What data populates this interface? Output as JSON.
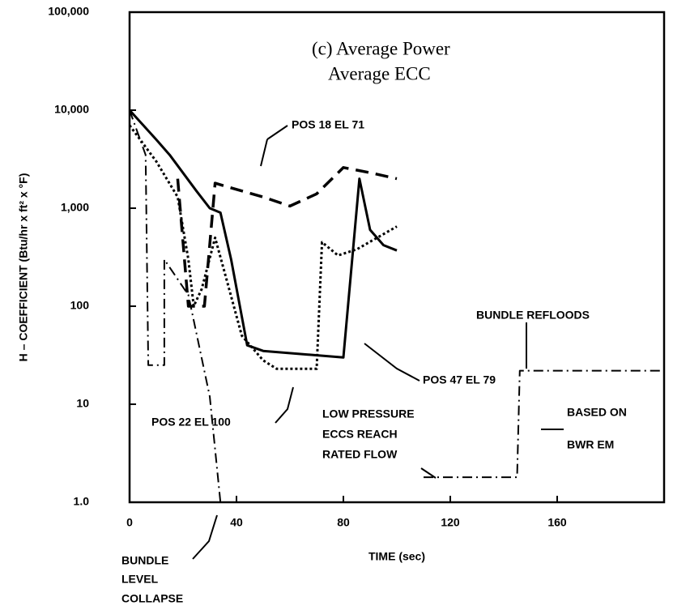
{
  "chart_data": {
    "type": "line",
    "title": "(c) Average Power",
    "subtitle": "Average ECC",
    "xlabel": "TIME (sec)",
    "ylabel": "H – COEFFICIENT (Btu/hr x ft² x °F)",
    "xlim": [
      0,
      200
    ],
    "ylim": [
      1,
      100000
    ],
    "log_y": true,
    "xticks": [
      0,
      40,
      80,
      120,
      160
    ],
    "yticks": [
      {
        "value": 1,
        "label": "1.0"
      },
      10,
      100,
      {
        "value": 1000,
        "label": "1,000"
      },
      {
        "value": 10000,
        "label": "10,000"
      },
      {
        "value": 100000,
        "label": "100,000"
      }
    ],
    "series": [
      {
        "name": "POS 47 EL 79",
        "color": "#000000",
        "style": "solid",
        "x": [
          0,
          10,
          15,
          25,
          30,
          34,
          38,
          44,
          50,
          80,
          86,
          90,
          95,
          100
        ],
        "values": [
          10000,
          5000,
          3500,
          1500,
          1000,
          900,
          300,
          40,
          35,
          30,
          2000,
          600,
          420,
          370
        ]
      },
      {
        "name": "POS 18 EL 71",
        "color": "#000000",
        "style": "dashed",
        "x": [
          18,
          22,
          28,
          32,
          35,
          50,
          60,
          70,
          80,
          90,
          100
        ],
        "values": [
          2000,
          100,
          100,
          1800,
          1700,
          1300,
          1050,
          1400,
          2600,
          2300,
          2000
        ]
      },
      {
        "name": "POS 22 EL 100",
        "color": "#000000",
        "style": "dotted",
        "x": [
          0,
          10,
          18,
          22,
          24,
          27,
          32,
          36,
          42,
          50,
          55,
          70,
          72,
          78,
          85,
          100
        ],
        "values": [
          7000,
          3000,
          1300,
          300,
          100,
          150,
          500,
          200,
          50,
          28,
          23,
          23,
          450,
          330,
          380,
          650
        ]
      },
      {
        "color": "#000000",
        "style": "dashdot",
        "x": [
          0,
          6,
          7,
          13,
          13,
          22,
          30,
          34,
          null,
          110,
          145,
          146,
          200
        ],
        "values": [
          10000,
          3500,
          25,
          25,
          300,
          130,
          12,
          1,
          null,
          1.8,
          1.8,
          22,
          22
        ]
      }
    ],
    "annotations": [
      "BUNDLE REFLOODS",
      "BASED ON",
      "BWR EM",
      "LOW PRESSURE",
      "ECCS REACH",
      "RATED FLOW",
      "BUNDLE",
      "LEVEL",
      "COLLAPSE"
    ]
  }
}
